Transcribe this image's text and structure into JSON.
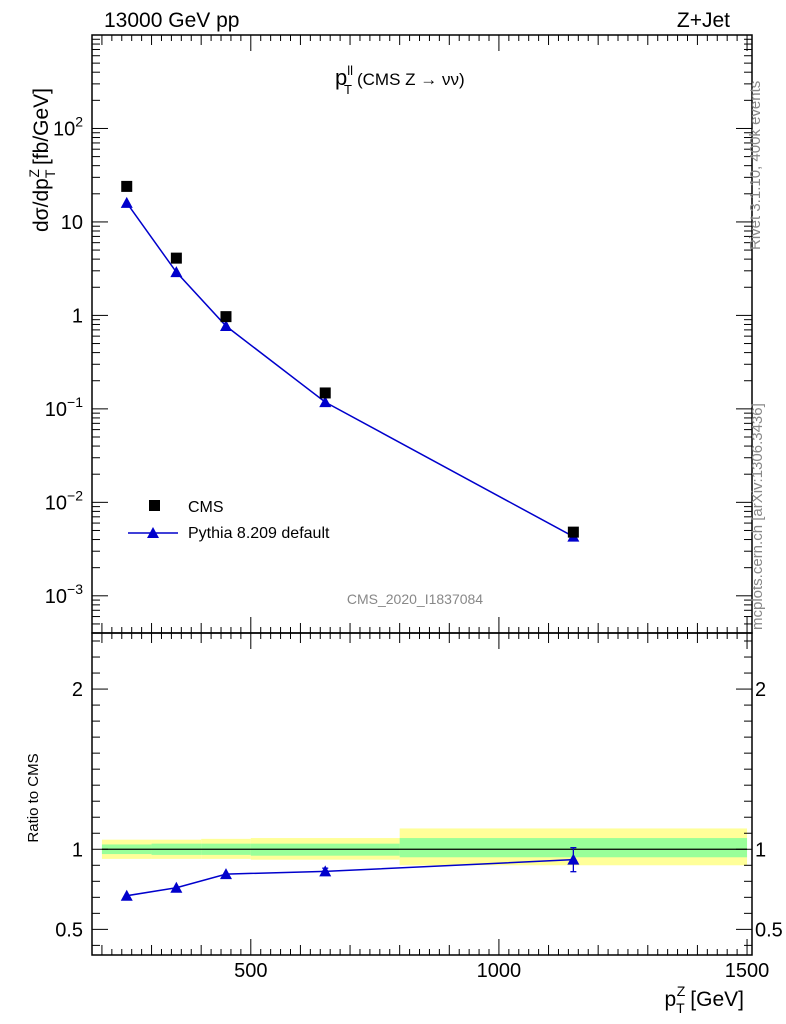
{
  "header": {
    "left": "13000 GeV pp",
    "right": "Z+Jet"
  },
  "side_labels": {
    "top": "Rivet 3.1.10,  400k events",
    "bottom": "mcplots.cern.ch [arXiv:1306.3436]"
  },
  "watermark": "CMS_2020_I1837084",
  "colors": {
    "data": "#000000",
    "mc": "#0000cc",
    "band_outer": "#ffff99",
    "band_inner": "#99ff99"
  },
  "chart_data": [
    {
      "type": "scatter",
      "title": "p_T^{ll} (CMS Z → νν)",
      "title_parts": {
        "main": "p",
        "sup": "ll",
        "sub": "T",
        "rest": "(CMS Z → νν)"
      },
      "ylabel": "dσ/dp_T^Z [fb/GeV]",
      "ylabel_parts": {
        "main": "dσ/dp",
        "sub": "T",
        "sup": "Z",
        "rest": "[fb/GeV]"
      },
      "yscale": "log",
      "ylim": [
        0.0004,
        1000
      ],
      "xlim": [
        180,
        1510
      ],
      "yticks": [
        {
          "value": 0.001,
          "base": "10",
          "exp": "−3"
        },
        {
          "value": 0.01,
          "base": "10",
          "exp": "−2"
        },
        {
          "value": 0.1,
          "base": "10",
          "exp": "−1"
        },
        {
          "value": 1,
          "label": "1"
        },
        {
          "value": 10,
          "label": "10"
        },
        {
          "value": 100,
          "base": "10",
          "exp": "2"
        }
      ],
      "legend_position": "bottom-left",
      "series": [
        {
          "name": "CMS",
          "marker": "square",
          "x": [
            250,
            350,
            450,
            650,
            1150
          ],
          "y": [
            24,
            4.1,
            0.97,
            0.148,
            0.0048
          ]
        },
        {
          "name": "Pythia 8.209 default",
          "marker": "triangle",
          "line": true,
          "x": [
            250,
            350,
            450,
            650,
            1150
          ],
          "y": [
            16,
            2.9,
            0.77,
            0.118,
            0.0043
          ]
        }
      ]
    },
    {
      "type": "line",
      "ylabel": "Ratio to CMS",
      "yscale": "linear",
      "ylim": [
        0.34,
        2.35
      ],
      "xlim": [
        180,
        1510
      ],
      "yticks": [
        {
          "value": 0.5,
          "label": "0.5"
        },
        {
          "value": 1,
          "label": "1"
        },
        {
          "value": 2,
          "label": "2"
        }
      ],
      "xticks": [
        {
          "value": 500,
          "label": "500"
        },
        {
          "value": 1000,
          "label": "1000"
        },
        {
          "value": 1500,
          "label": "1500"
        }
      ],
      "xlabel": "p_T^Z [GeV]",
      "xlabel_parts": {
        "main": "p",
        "sub": "T",
        "sup": "Z",
        "rest": "[GeV]"
      },
      "bands": [
        {
          "x0": 200,
          "x1": 300,
          "outer": [
            0.94,
            1.06
          ],
          "inner": [
            0.97,
            1.03
          ]
        },
        {
          "x0": 300,
          "x1": 400,
          "outer": [
            0.94,
            1.06
          ],
          "inner": [
            0.965,
            1.035
          ]
        },
        {
          "x0": 400,
          "x1": 500,
          "outer": [
            0.94,
            1.065
          ],
          "inner": [
            0.965,
            1.035
          ]
        },
        {
          "x0": 500,
          "x1": 800,
          "outer": [
            0.935,
            1.07
          ],
          "inner": [
            0.96,
            1.035
          ]
        },
        {
          "x0": 800,
          "x1": 1500,
          "outer": [
            0.9,
            1.13
          ],
          "inner": [
            0.95,
            1.07
          ]
        }
      ],
      "series": [
        {
          "name": "Pythia 8.209 default",
          "marker": "triangle",
          "x": [
            250,
            350,
            450,
            650,
            1150
          ],
          "y": [
            0.71,
            0.76,
            0.845,
            0.862,
            0.935
          ],
          "yerr": [
            0.005,
            0.01,
            0.01,
            0.02,
            0.075
          ]
        }
      ]
    }
  ]
}
